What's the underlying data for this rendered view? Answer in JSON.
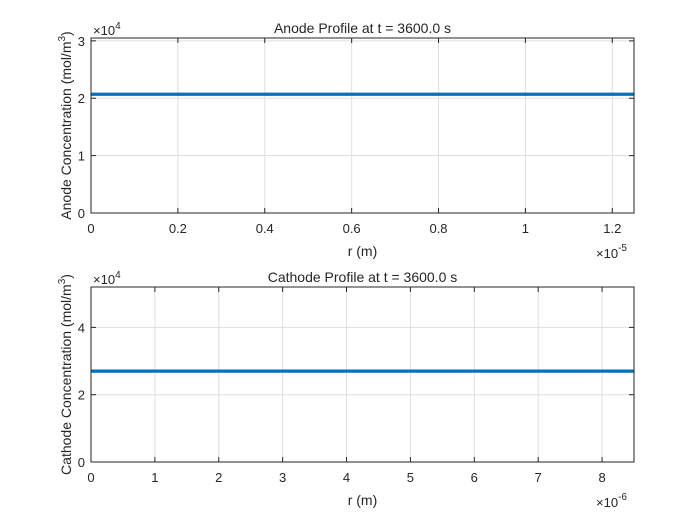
{
  "chart_data": [
    {
      "type": "line",
      "title": "Anode Profile at t = 3600.0 s",
      "xlabel": "r (m)",
      "ylabel_prefix": "Anode Concentration (mol/m",
      "ylabel_sup": "3",
      "ylabel_suffix": ")",
      "x_multiplier_base": "×10",
      "x_multiplier_exp": "-5",
      "y_multiplier_base": "×10",
      "y_multiplier_exp": "4",
      "xlim": [
        0,
        1.25
      ],
      "ylim": [
        0,
        3.05
      ],
      "xticks": [
        0,
        0.2,
        0.4,
        0.6,
        0.8,
        1.0,
        1.2
      ],
      "xtick_labels": [
        "0",
        "0.2",
        "0.4",
        "0.6",
        "0.8",
        "1",
        "1.2"
      ],
      "yticks": [
        0,
        1,
        2,
        3
      ],
      "ytick_labels": [
        "0",
        "1",
        "2",
        "3"
      ],
      "grid": true,
      "series": [
        {
          "color": "#0072BD",
          "x": [
            0,
            1.25
          ],
          "y": [
            2.07,
            2.07
          ]
        }
      ]
    },
    {
      "type": "line",
      "title": "Cathode Profile at t = 3600.0 s",
      "xlabel": "r (m)",
      "ylabel_prefix": "Cathode Concentration (mol/m",
      "ylabel_sup": "3",
      "ylabel_suffix": ")",
      "x_multiplier_base": "×10",
      "x_multiplier_exp": "-6",
      "y_multiplier_base": "×10",
      "y_multiplier_exp": "4",
      "xlim": [
        0,
        8.5
      ],
      "ylim": [
        0,
        5.2
      ],
      "xticks": [
        0,
        1,
        2,
        3,
        4,
        5,
        6,
        7,
        8
      ],
      "xtick_labels": [
        "0",
        "1",
        "2",
        "3",
        "4",
        "5",
        "6",
        "7",
        "8"
      ],
      "yticks": [
        0,
        2,
        4
      ],
      "ytick_labels": [
        "0",
        "2",
        "4"
      ],
      "grid": true,
      "series": [
        {
          "color": "#0072BD",
          "x": [
            0,
            8.5
          ],
          "y": [
            2.7,
            2.7
          ]
        }
      ]
    }
  ]
}
